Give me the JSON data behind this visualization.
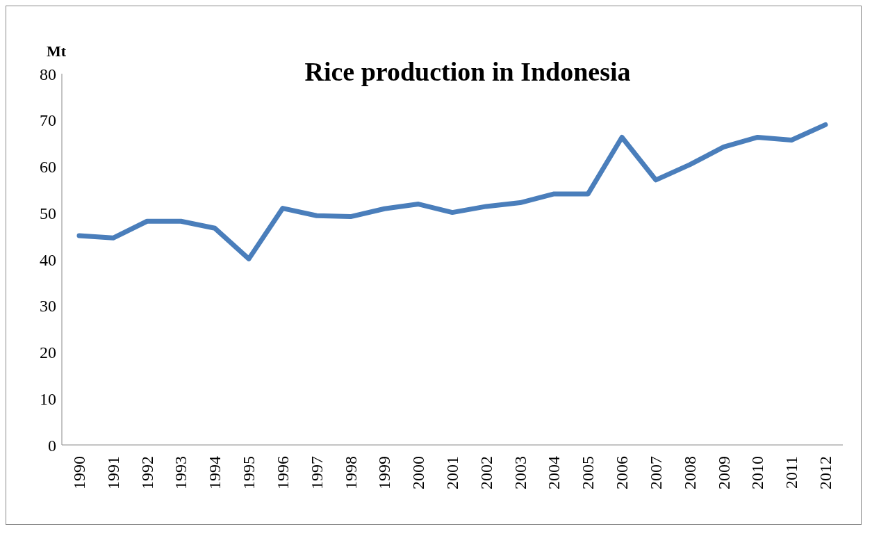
{
  "chart_data": {
    "type": "line",
    "title": "Rice production in Indonesia",
    "ylabel": "Mt",
    "categories": [
      "1990",
      "1991",
      "1992",
      "1993",
      "1994",
      "1995",
      "1996",
      "1997",
      "1998",
      "1999",
      "2000",
      "2001",
      "2002",
      "2003",
      "2004",
      "2005",
      "2006",
      "2007",
      "2008",
      "2009",
      "2010",
      "2011",
      "2012"
    ],
    "series": [
      {
        "color": "#4a7ebb",
        "values": [
          45.1,
          44.6,
          48.2,
          48.2,
          46.7,
          40.1,
          51.0,
          49.4,
          49.2,
          50.9,
          51.9,
          50.1,
          51.4,
          52.2,
          54.1,
          54.1,
          66.3,
          57.1,
          60.4,
          64.2,
          66.3,
          65.7,
          69.0
        ]
      }
    ],
    "ylim": [
      0,
      80
    ],
    "yticks": [
      0,
      10,
      20,
      30,
      40,
      50,
      60,
      70,
      80
    ],
    "grid": false,
    "legend": false,
    "marker": "none",
    "line_style": "solid"
  }
}
